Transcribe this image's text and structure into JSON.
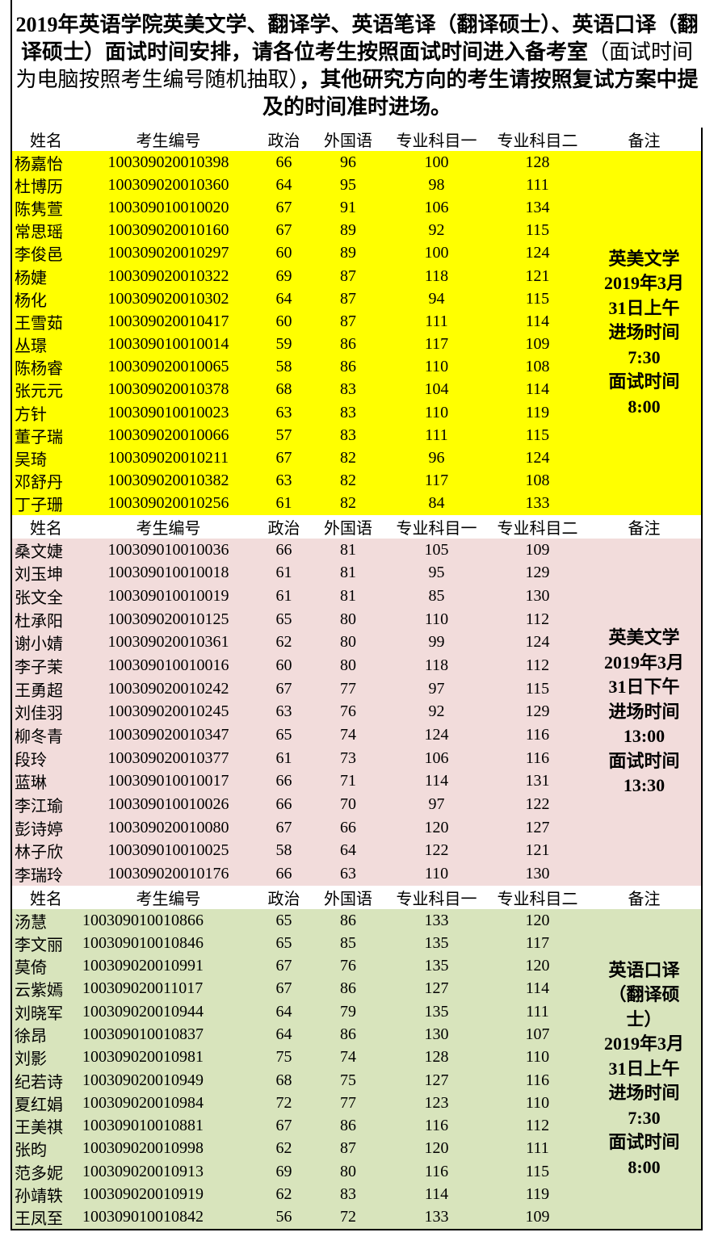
{
  "title": {
    "bold_start": "2019年英语学院英美文学、翻译学、英语笔译（翻译硕士）、英语口译（翻译硕士）面试时间安排，请各位考生按照面试时间进入备考室",
    "normal": "（面试时间为电脑按照考生编号随机抽取）",
    "bold_end": "，其他研究方向的考生请按照复试方案中提及的时间准时进场。"
  },
  "sections": [
    {
      "headers": [
        "姓名",
        "考生编号",
        "政治",
        "外国语",
        "专业科目一",
        "专业科目二",
        "备注"
      ],
      "note": [
        "英美文学",
        "2019年3月",
        "31日上午",
        "进场时间",
        "7:30",
        "面试时间",
        "8:00"
      ],
      "rows": [
        [
          "杨嘉怡",
          "100309020010398",
          66,
          96,
          100,
          128
        ],
        [
          "杜博历",
          "100309020010360",
          64,
          95,
          98,
          111
        ],
        [
          "陈隽萱",
          "100309010010020",
          67,
          91,
          106,
          134
        ],
        [
          "常思瑶",
          "100309020010160",
          67,
          89,
          92,
          115
        ],
        [
          "李俊邑",
          "100309020010297",
          60,
          89,
          100,
          124
        ],
        [
          "杨婕",
          "100309020010322",
          69,
          87,
          118,
          121
        ],
        [
          "杨化",
          "100309020010302",
          64,
          87,
          94,
          115
        ],
        [
          "王雪茹",
          "100309020010417",
          60,
          87,
          111,
          114
        ],
        [
          "丛璟",
          "100309010010014",
          59,
          86,
          117,
          109
        ],
        [
          "陈杨睿",
          "100309020010065",
          58,
          86,
          110,
          108
        ],
        [
          "张元元",
          "100309020010378",
          68,
          83,
          104,
          114
        ],
        [
          "方针",
          "100309010010023",
          63,
          83,
          110,
          119
        ],
        [
          "董子瑞",
          "100309020010066",
          57,
          83,
          111,
          115
        ],
        [
          "吴琦",
          "100309020010211",
          67,
          82,
          96,
          124
        ],
        [
          "邓舒丹",
          "100309020010382",
          63,
          82,
          117,
          108
        ],
        [
          "丁子珊",
          "100309020010256",
          61,
          82,
          84,
          133
        ]
      ]
    },
    {
      "headers": [
        "姓名",
        "考生编号",
        "政治",
        "外国语",
        "专业科目一",
        "专业科目二",
        "备注"
      ],
      "note": [
        "英美文学",
        "2019年3月",
        "31日下午",
        "进场时间",
        "13:00",
        "面试时间",
        "13:30"
      ],
      "rows": [
        [
          "桑文婕",
          "100309010010036",
          66,
          81,
          105,
          109
        ],
        [
          "刘玉坤",
          "100309010010018",
          61,
          81,
          95,
          129
        ],
        [
          "张文全",
          "100309010010019",
          61,
          81,
          85,
          130
        ],
        [
          "杜承阳",
          "100309020010125",
          65,
          80,
          110,
          112
        ],
        [
          "谢小婧",
          "100309020010361",
          62,
          80,
          99,
          124
        ],
        [
          "李子茉",
          "100309010010016",
          60,
          80,
          118,
          112
        ],
        [
          "王勇超",
          "100309020010242",
          67,
          77,
          97,
          115
        ],
        [
          "刘佳羽",
          "100309020010245",
          63,
          76,
          92,
          129
        ],
        [
          "柳冬青",
          "100309020010347",
          65,
          74,
          124,
          116
        ],
        [
          "段玲",
          "100309020010377",
          61,
          73,
          106,
          116
        ],
        [
          "蓝琳",
          "100309010010017",
          66,
          71,
          114,
          131
        ],
        [
          "李江瑜",
          "100309010010026",
          66,
          70,
          97,
          122
        ],
        [
          "彭诗婷",
          "100309020010080",
          67,
          66,
          120,
          127
        ],
        [
          "林子欣",
          "100309010010025",
          58,
          64,
          122,
          121
        ],
        [
          "李瑞玲",
          "100309020010176",
          66,
          63,
          110,
          130
        ]
      ]
    },
    {
      "headers": [
        "姓名",
        "考生编号",
        "政治",
        "外国语",
        "专业科目一",
        "专业科目二",
        "备注"
      ],
      "note": [
        "英语口译",
        "（翻译硕",
        "士）",
        "2019年3月",
        "31日上午",
        "进场时间",
        "7:30",
        "面试时间",
        "8:00"
      ],
      "rows": [
        [
          "汤慧",
          "100309010010866",
          65,
          86,
          133,
          120
        ],
        [
          "李文丽",
          "100309010010846",
          65,
          85,
          135,
          117
        ],
        [
          "莫倚",
          "100309020010991",
          67,
          76,
          135,
          120
        ],
        [
          "云紫嫣",
          "100309020011017",
          67,
          86,
          127,
          114
        ],
        [
          "刘晓军",
          "100309020010944",
          64,
          79,
          135,
          111
        ],
        [
          "徐昂",
          "100309010010837",
          64,
          86,
          130,
          107
        ],
        [
          "刘影",
          "100309020010981",
          75,
          74,
          128,
          110
        ],
        [
          "纪若诗",
          "100309020010949",
          68,
          75,
          127,
          116
        ],
        [
          "夏红娟",
          "100309020010984",
          72,
          77,
          123,
          110
        ],
        [
          "王美祺",
          "100309010010881",
          67,
          86,
          116,
          112
        ],
        [
          "张昀",
          "100309020010998",
          62,
          87,
          120,
          111
        ],
        [
          "范多妮",
          "100309020010913",
          69,
          80,
          116,
          115
        ],
        [
          "孙靖轶",
          "100309020010919",
          62,
          83,
          114,
          119
        ],
        [
          "王凤至",
          "100309010010842",
          56,
          72,
          133,
          109
        ]
      ]
    }
  ]
}
